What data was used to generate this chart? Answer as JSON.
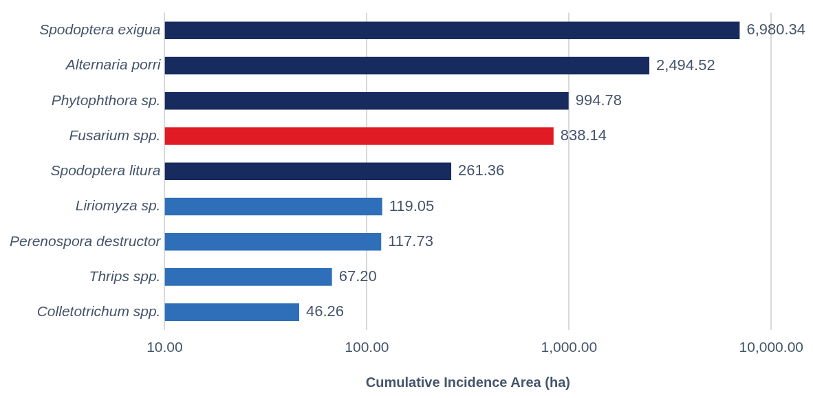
{
  "chart_data": {
    "type": "bar",
    "orientation": "horizontal",
    "log": "x",
    "xlabel": "Cumulative Incidence Area (ha)",
    "categories": [
      "Spodoptera exigua",
      "Alternaria porri",
      "Phytophthora sp.",
      "Fusarium spp.",
      "Spodoptera litura",
      "Liriomyza sp.",
      "Perenospora destructor",
      "Thrips spp.",
      "Colletotrichum spp."
    ],
    "values": [
      6980.34,
      2494.52,
      994.78,
      838.14,
      261.36,
      119.05,
      117.73,
      67.2,
      46.26
    ],
    "value_labels": [
      "6,980.34",
      "2,494.52",
      "994.78",
      "838.14",
      "261.36",
      "119.05",
      "117.73",
      "67.20",
      "46.26"
    ],
    "colors": [
      "#172b5f",
      "#172b5f",
      "#172b5f",
      "#e01b24",
      "#172b5f",
      "#2f6fb9",
      "#2f6fb9",
      "#2f6fb9",
      "#2f6fb9"
    ],
    "xlim": [
      10,
      10000
    ],
    "xticks": [
      {
        "value": 10,
        "label": "10.00"
      },
      {
        "value": 100,
        "label": "100.00"
      },
      {
        "value": 1000,
        "label": "1,000.00"
      },
      {
        "value": 10000,
        "label": "10,000.00"
      }
    ],
    "grid": "x",
    "legend": false
  }
}
